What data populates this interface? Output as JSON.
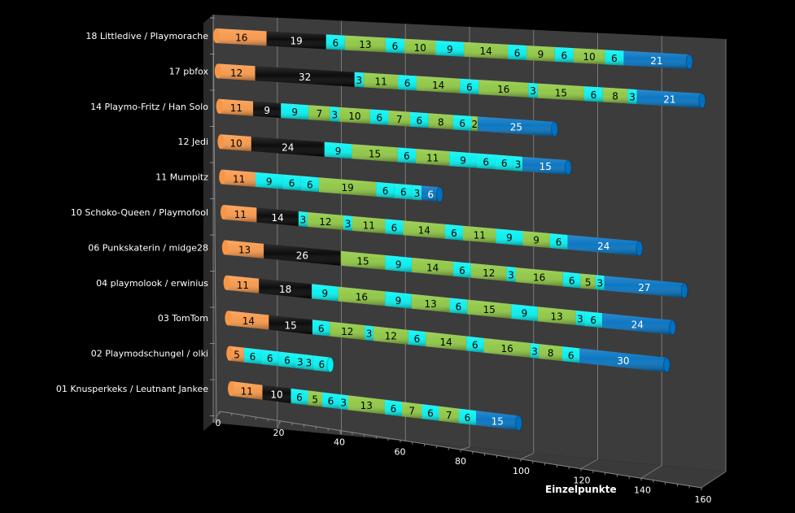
{
  "chart_data": {
    "type": "bar",
    "orientation": "horizontal",
    "stacked": true,
    "style": "3d-cylinder",
    "title": "",
    "xlabel": "Einzelpunkte",
    "ylabel": "",
    "xlim": [
      0,
      160
    ],
    "x_ticks": [
      "0",
      "20",
      "40",
      "60",
      "80",
      "100",
      "120",
      "140",
      "160"
    ],
    "grid": true,
    "legend": "none",
    "colors": {
      "orange": "#f79646",
      "black": "#000000",
      "cyan": "#00f0f0",
      "green": "#8cc63f",
      "blue": "#0070c0"
    },
    "categories": [
      "18 Littledive / Playmorache",
      "17 pbfox",
      "14 Playmo-Fritz / Han Solo",
      "12 Jedi",
      "11 Mumpitz",
      "10 Schoko-Queen / Playmofool",
      "06 Punkskaterin / midge28",
      "04 playmolook / erwinius",
      "03 TomTom",
      "02 Playmodschungel / olki",
      "01 Knusperkeks / Leutnant Jankee"
    ],
    "rows": [
      {
        "values": [
          16,
          19,
          6,
          13,
          6,
          10,
          9,
          14,
          6,
          9,
          6,
          10,
          6,
          21
        ],
        "colors": [
          "orange",
          "black",
          "cyan",
          "green",
          "cyan",
          "green",
          "cyan",
          "green",
          "cyan",
          "green",
          "cyan",
          "green",
          "cyan",
          "blue"
        ]
      },
      {
        "values": [
          12,
          32,
          3,
          11,
          6,
          14,
          6,
          16,
          3,
          15,
          6,
          8,
          3,
          21
        ],
        "colors": [
          "orange",
          "black",
          "cyan",
          "green",
          "cyan",
          "green",
          "cyan",
          "green",
          "cyan",
          "green",
          "cyan",
          "green",
          "cyan",
          "blue"
        ]
      },
      {
        "values": [
          11,
          9,
          9,
          7,
          3,
          10,
          6,
          7,
          6,
          8,
          6,
          2,
          25
        ],
        "colors": [
          "orange",
          "black",
          "cyan",
          "green",
          "cyan",
          "green",
          "cyan",
          "green",
          "cyan",
          "green",
          "cyan",
          "green",
          "blue"
        ]
      },
      {
        "values": [
          10,
          24,
          9,
          15,
          6,
          11,
          9,
          6,
          6,
          3,
          15
        ],
        "colors": [
          "orange",
          "black",
          "cyan",
          "green",
          "cyan",
          "green",
          "cyan",
          "cyan",
          "cyan",
          "cyan",
          "blue"
        ]
      },
      {
        "values": [
          11,
          9,
          6,
          6,
          19,
          6,
          6,
          3,
          6
        ],
        "colors": [
          "orange",
          "cyan",
          "cyan",
          "cyan",
          "green",
          "cyan",
          "cyan",
          "cyan",
          "blue"
        ]
      },
      {
        "values": [
          11,
          14,
          3,
          12,
          3,
          11,
          6,
          14,
          6,
          11,
          9,
          9,
          6,
          24
        ],
        "colors": [
          "orange",
          "black",
          "cyan",
          "green",
          "cyan",
          "green",
          "cyan",
          "green",
          "cyan",
          "green",
          "cyan",
          "green",
          "cyan",
          "blue"
        ]
      },
      {
        "values": [
          13,
          26,
          15,
          9,
          14,
          6,
          12,
          3,
          16,
          6,
          5,
          3,
          27
        ],
        "colors": [
          "orange",
          "black",
          "green",
          "cyan",
          "green",
          "cyan",
          "green",
          "cyan",
          "green",
          "cyan",
          "green",
          "cyan",
          "blue"
        ]
      },
      {
        "values": [
          11,
          18,
          9,
          16,
          9,
          13,
          6,
          15,
          9,
          13,
          3,
          6,
          24
        ],
        "colors": [
          "orange",
          "black",
          "cyan",
          "green",
          "cyan",
          "green",
          "cyan",
          "green",
          "cyan",
          "green",
          "cyan",
          "cyan",
          "blue"
        ]
      },
      {
        "values": [
          14,
          15,
          6,
          12,
          3,
          12,
          6,
          14,
          6,
          16,
          3,
          8,
          6,
          30
        ],
        "colors": [
          "orange",
          "black",
          "cyan",
          "green",
          "cyan",
          "green",
          "cyan",
          "green",
          "cyan",
          "green",
          "cyan",
          "green",
          "cyan",
          "blue"
        ]
      },
      {
        "values": [
          5,
          6,
          6,
          6,
          3,
          3,
          6
        ],
        "colors": [
          "orange",
          "cyan",
          "cyan",
          "cyan",
          "cyan",
          "cyan",
          "cyan"
        ]
      },
      {
        "values": [
          11,
          10,
          6,
          5,
          6,
          3,
          13,
          6,
          7,
          6,
          7,
          6,
          15
        ],
        "colors": [
          "orange",
          "black",
          "cyan",
          "green",
          "cyan",
          "cyan",
          "green",
          "cyan",
          "green",
          "cyan",
          "green",
          "cyan",
          "blue"
        ]
      }
    ]
  }
}
